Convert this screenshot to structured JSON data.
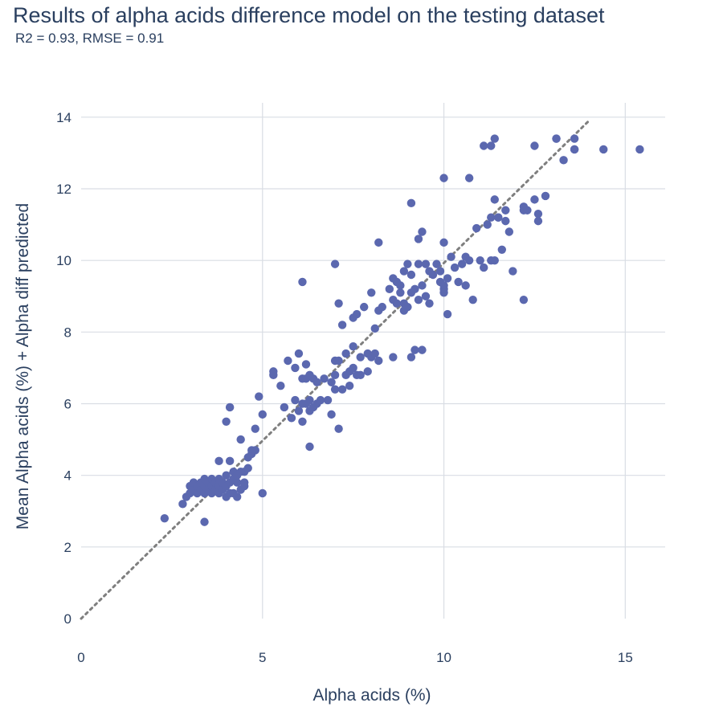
{
  "chart_data": {
    "type": "scatter",
    "title": "Results of alpha acids difference model on the testing dataset",
    "subtitle": "R2 = 0.93, RMSE = 0.91",
    "xlabel": "Alpha acids (%)",
    "ylabel": "Mean Alpha acids (%) + Alpha diff predicted",
    "xlim": [
      0,
      16.1
    ],
    "ylim": [
      0,
      14.4
    ],
    "xticks": [
      0,
      5,
      10,
      15
    ],
    "yticks": [
      0,
      2,
      4,
      6,
      8,
      10,
      12,
      14
    ],
    "grid": true,
    "reference_line": {
      "style": "dotted",
      "color": "#7f7f7f",
      "from": [
        0,
        0
      ],
      "to": [
        14,
        13.9
      ]
    },
    "marker_color": "#5b68af",
    "x": [
      2.3,
      2.8,
      2.9,
      3.0,
      3.0,
      3.1,
      3.1,
      3.2,
      3.2,
      3.3,
      3.3,
      3.4,
      3.4,
      3.4,
      3.5,
      3.5,
      3.6,
      3.6,
      3.6,
      3.7,
      3.7,
      3.8,
      3.8,
      3.8,
      3.9,
      3.9,
      4.0,
      4.0,
      4.0,
      4.1,
      4.1,
      4.1,
      4.2,
      4.2,
      4.2,
      4.3,
      4.3,
      4.3,
      4.4,
      4.4,
      4.5,
      4.5,
      4.5,
      4.6,
      4.6,
      4.7,
      4.7,
      4.8,
      4.8,
      4.9,
      5.0,
      5.0,
      3.4,
      4.0,
      3.8,
      4.4,
      5.3,
      5.3,
      5.5,
      5.6,
      5.7,
      5.8,
      5.9,
      5.9,
      6.0,
      6.0,
      6.1,
      6.1,
      6.1,
      6.2,
      6.2,
      6.2,
      6.3,
      6.3,
      6.3,
      6.4,
      6.4,
      6.5,
      6.5,
      6.6,
      6.7,
      6.8,
      6.9,
      6.9,
      7.0,
      7.0,
      7.0,
      7.1,
      7.1,
      7.2,
      7.2,
      7.3,
      7.3,
      7.4,
      7.4,
      7.5,
      7.5,
      7.5,
      7.6,
      7.6,
      7.7,
      7.7,
      7.8,
      7.9,
      7.9,
      8.0,
      8.0,
      8.1,
      8.1,
      8.2,
      8.2,
      8.3,
      8.5,
      8.6,
      8.6,
      8.6,
      8.7,
      8.7,
      8.8,
      8.8,
      8.9,
      8.9,
      8.9,
      9.0,
      9.0,
      9.1,
      9.1,
      9.1,
      9.2,
      9.2,
      9.3,
      9.3,
      9.3,
      9.4,
      9.4,
      9.4,
      9.5,
      9.5,
      9.6,
      9.6,
      9.7,
      9.8,
      9.9,
      9.9,
      10.0,
      10.0,
      10.0,
      10.0,
      10.1,
      10.1,
      10.2,
      10.3,
      10.4,
      10.5,
      10.6,
      10.6,
      10.7,
      10.8,
      10.9,
      11.0,
      11.1,
      11.2,
      11.3,
      11.3,
      11.4,
      11.4,
      11.5,
      11.5,
      11.6,
      11.7,
      11.7,
      11.8,
      11.9,
      12.2,
      12.2,
      12.2,
      12.5,
      12.6,
      12.6,
      12.8,
      12.3,
      12.5,
      13.1,
      13.1,
      13.3,
      13.6,
      13.6,
      13.6,
      14.4,
      15.4,
      11.1,
      11.3,
      11.4,
      10.0,
      10.7,
      9.1,
      7.0,
      6.1,
      8.2,
      6.3,
      7.1,
      4.1
    ],
    "y": [
      2.8,
      3.2,
      3.4,
      3.5,
      3.7,
      3.6,
      3.8,
      3.5,
      3.7,
      3.6,
      3.8,
      3.5,
      3.7,
      3.9,
      3.6,
      3.8,
      3.5,
      3.7,
      3.9,
      3.6,
      3.8,
      3.5,
      3.7,
      4.4,
      3.6,
      3.8,
      3.4,
      3.7,
      4.0,
      3.5,
      3.8,
      4.4,
      3.5,
      3.9,
      4.1,
      3.4,
      3.8,
      4.0,
      3.6,
      5.0,
      3.7,
      4.1,
      3.8,
      4.2,
      4.5,
      4.6,
      4.7,
      5.3,
      4.7,
      6.2,
      3.5,
      5.7,
      2.7,
      5.5,
      3.9,
      4.1,
      6.9,
      6.8,
      6.5,
      5.9,
      7.2,
      5.6,
      6.1,
      7.0,
      5.8,
      7.4,
      6.0,
      6.7,
      5.5,
      6.0,
      6.7,
      7.1,
      6.1,
      5.8,
      4.8,
      5.9,
      6.7,
      6.6,
      6.0,
      6.1,
      6.7,
      6.1,
      5.7,
      6.6,
      6.8,
      7.2,
      6.4,
      5.3,
      7.2,
      8.2,
      6.4,
      6.8,
      7.4,
      6.5,
      6.9,
      8.4,
      7.0,
      7.6,
      6.8,
      8.5,
      7.3,
      6.8,
      8.7,
      7.4,
      6.9,
      7.3,
      9.1,
      8.1,
      7.4,
      8.6,
      7.2,
      8.7,
      9.2,
      9.5,
      8.9,
      7.3,
      8.8,
      9.4,
      9.1,
      9.3,
      8.6,
      8.8,
      9.7,
      8.7,
      9.9,
      9.1,
      9.6,
      7.3,
      7.5,
      9.2,
      10.6,
      8.9,
      9.9,
      7.5,
      10.8,
      9.3,
      9.9,
      9.0,
      8.8,
      9.7,
      9.6,
      9.9,
      9.4,
      9.7,
      9.2,
      10.5,
      9.3,
      9.1,
      9.5,
      8.5,
      10.1,
      9.8,
      9.4,
      9.9,
      9.3,
      10.1,
      10.0,
      8.9,
      10.9,
      10.0,
      9.8,
      11.0,
      10.0,
      11.2,
      10.0,
      11.7,
      11.2,
      11.2,
      10.3,
      11.4,
      11.1,
      10.8,
      9.7,
      8.9,
      11.4,
      11.5,
      11.7,
      11.1,
      11.3,
      11.8,
      11.4,
      13.2,
      13.4,
      13.4,
      12.8,
      13.1,
      13.4,
      13.1,
      13.1,
      13.1,
      13.2,
      13.2,
      13.4,
      12.3,
      12.3,
      11.6,
      9.9,
      9.4,
      10.5,
      6.8,
      8.8,
      5.9
    ]
  }
}
